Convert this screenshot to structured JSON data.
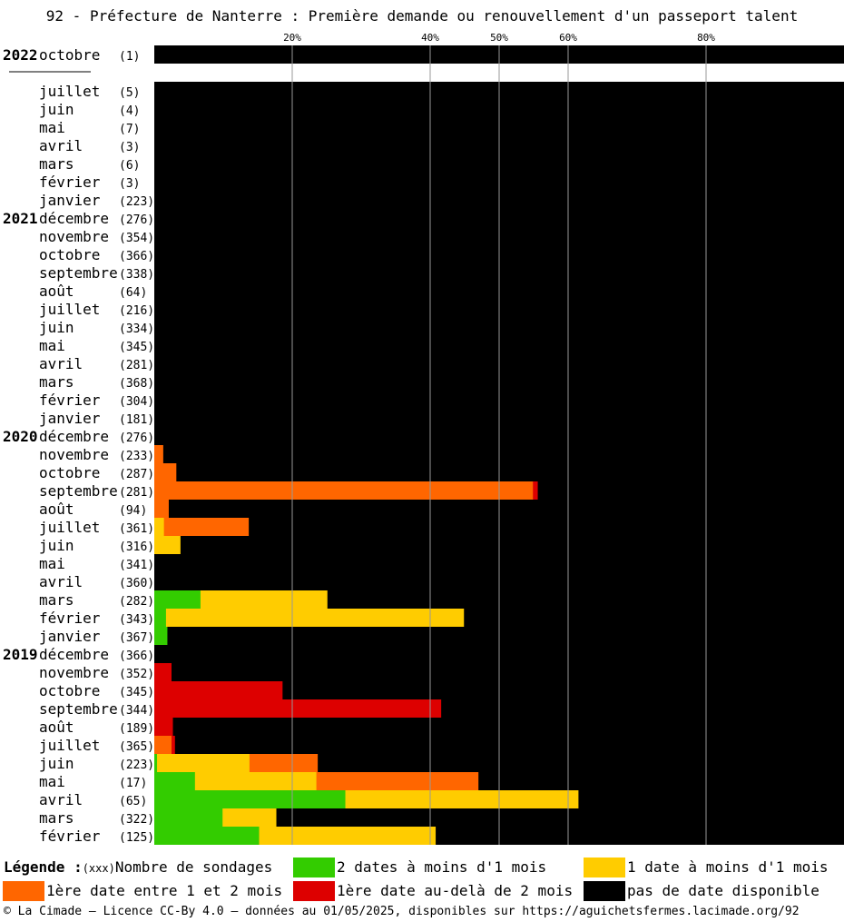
{
  "title": "92 - Préfecture de Nanterre : Première demande ou renouvellement d'un passeport talent",
  "legend": {
    "heading": "Légende :",
    "count_note": "(xxx)",
    "count_label": "Nombre de sondages",
    "items": [
      {
        "label": "2 dates à moins d'1 mois",
        "color": "#33cc00"
      },
      {
        "label": "1 date à moins d'1 mois",
        "color": "#ffcc00"
      },
      {
        "label": "1ère date entre 1 et 2 mois",
        "color": "#ff6600"
      },
      {
        "label": "1ère date au-delà de 2 mois",
        "color": "#dd0000"
      },
      {
        "label": "pas de date disponible",
        "color": "#000000"
      }
    ]
  },
  "footer": "© La Cimade — Licence CC-By 4.0 — données au 01/05/2025, disponibles sur https://aguichetsfermes.lacimade.org/92",
  "chart_data": {
    "type": "bar",
    "orientation": "horizontal-stacked-percent",
    "x_ticks": [
      {
        "value": 20,
        "label": "20%"
      },
      {
        "value": 40,
        "label": "40%"
      },
      {
        "value": 50,
        "label": "50%"
      },
      {
        "value": 60,
        "label": "60%"
      },
      {
        "value": 80,
        "label": "80%"
      }
    ],
    "xlim": [
      0,
      100
    ],
    "series_order": [
      "vert",
      "jaune",
      "orange",
      "rouge",
      "noir"
    ],
    "rows": [
      {
        "year": "2022",
        "month": "octobre",
        "count": "(1)",
        "v": [
          0,
          0,
          0,
          0,
          100
        ]
      },
      {
        "gap": true
      },
      {
        "month": "juillet",
        "count": "(5)",
        "v": [
          0,
          0,
          0,
          0,
          100
        ]
      },
      {
        "month": "juin",
        "count": "(4)",
        "v": [
          0,
          0,
          0,
          0,
          100
        ]
      },
      {
        "month": "mai",
        "count": "(7)",
        "v": [
          0,
          0,
          0,
          0,
          100
        ]
      },
      {
        "month": "avril",
        "count": "(3)",
        "v": [
          0,
          0,
          0,
          0,
          100
        ]
      },
      {
        "month": "mars",
        "count": "(6)",
        "v": [
          0,
          0,
          0,
          0,
          100
        ]
      },
      {
        "month": "février",
        "count": "(3)",
        "v": [
          0,
          0,
          0,
          0,
          100
        ]
      },
      {
        "month": "janvier",
        "count": "(223)",
        "v": [
          0,
          0,
          0,
          0,
          100
        ]
      },
      {
        "year": "2021",
        "month": "décembre",
        "count": "(276)",
        "v": [
          0,
          0,
          0,
          0,
          100
        ]
      },
      {
        "month": "novembre",
        "count": "(354)",
        "v": [
          0,
          0,
          0,
          0,
          100
        ]
      },
      {
        "month": "octobre",
        "count": "(366)",
        "v": [
          0,
          0,
          0,
          0,
          100
        ]
      },
      {
        "month": "septembre",
        "count": "(338)",
        "v": [
          0,
          0,
          0,
          0,
          100
        ]
      },
      {
        "month": "août",
        "count": "(64)",
        "v": [
          0,
          0,
          0,
          0,
          100
        ]
      },
      {
        "month": "juillet",
        "count": "(216)",
        "v": [
          0,
          0,
          0,
          0,
          100
        ]
      },
      {
        "month": "juin",
        "count": "(334)",
        "v": [
          0,
          0,
          0,
          0,
          100
        ]
      },
      {
        "month": "mai",
        "count": "(345)",
        "v": [
          0,
          0,
          0,
          0,
          100
        ]
      },
      {
        "month": "avril",
        "count": "(281)",
        "v": [
          0,
          0,
          0,
          0,
          100
        ]
      },
      {
        "month": "mars",
        "count": "(368)",
        "v": [
          0,
          0,
          0,
          0,
          100
        ]
      },
      {
        "month": "février",
        "count": "(304)",
        "v": [
          0,
          0,
          0,
          0,
          100
        ]
      },
      {
        "month": "janvier",
        "count": "(181)",
        "v": [
          0,
          0,
          0,
          0,
          100
        ]
      },
      {
        "year": "2020",
        "month": "décembre",
        "count": "(276)",
        "v": [
          0,
          0,
          0,
          0,
          100
        ]
      },
      {
        "month": "novembre",
        "count": "(233)",
        "v": [
          0,
          0,
          1.3,
          0,
          98.7
        ]
      },
      {
        "month": "octobre",
        "count": "(287)",
        "v": [
          0,
          0,
          3.2,
          0,
          96.8
        ]
      },
      {
        "month": "septembre",
        "count": "(281)",
        "v": [
          0,
          0,
          54.9,
          0.7,
          44.4
        ]
      },
      {
        "month": "août",
        "count": "(94)",
        "v": [
          0,
          0,
          2.1,
          0,
          97.9
        ]
      },
      {
        "month": "juillet",
        "count": "(361)",
        "v": [
          0,
          1.4,
          12.3,
          0,
          86.3
        ]
      },
      {
        "month": "juin",
        "count": "(316)",
        "v": [
          0,
          3.8,
          0,
          0,
          96.2
        ]
      },
      {
        "month": "mai",
        "count": "(341)",
        "v": [
          0,
          0,
          0,
          0,
          100
        ]
      },
      {
        "month": "avril",
        "count": "(360)",
        "v": [
          0,
          0,
          0,
          0,
          100
        ]
      },
      {
        "month": "mars",
        "count": "(282)",
        "v": [
          6.7,
          18.4,
          0,
          0,
          74.9
        ]
      },
      {
        "month": "février",
        "count": "(343)",
        "v": [
          1.7,
          43.2,
          0,
          0,
          55.1
        ]
      },
      {
        "month": "janvier",
        "count": "(367)",
        "v": [
          1.9,
          0,
          0,
          0,
          98.1
        ]
      },
      {
        "year": "2019",
        "month": "décembre",
        "count": "(366)",
        "v": [
          0,
          0,
          0,
          0,
          100
        ]
      },
      {
        "month": "novembre",
        "count": "(352)",
        "v": [
          0,
          0,
          0,
          2.5,
          97.5
        ]
      },
      {
        "month": "octobre",
        "count": "(345)",
        "v": [
          0,
          0,
          0,
          18.6,
          81.4
        ]
      },
      {
        "month": "septembre",
        "count": "(344)",
        "v": [
          0,
          0,
          0,
          41.6,
          58.4
        ]
      },
      {
        "month": "août",
        "count": "(189)",
        "v": [
          0,
          0,
          0,
          2.7,
          97.3
        ]
      },
      {
        "month": "juillet",
        "count": "(365)",
        "v": [
          0,
          0,
          2.5,
          0.5,
          97
        ]
      },
      {
        "month": "juin",
        "count": "(223)",
        "v": [
          0.4,
          13.4,
          9.9,
          0,
          76.3
        ]
      },
      {
        "month": "mai",
        "count": "(17)",
        "v": [
          5.9,
          17.6,
          23.5,
          0,
          53
        ]
      },
      {
        "month": "avril",
        "count": "(65)",
        "v": [
          27.7,
          33.8,
          0,
          0,
          38.5
        ]
      },
      {
        "month": "mars",
        "count": "(322)",
        "v": [
          9.9,
          7.8,
          0,
          0,
          82.3
        ]
      },
      {
        "month": "février",
        "count": "(125)",
        "v": [
          15.2,
          25.6,
          0,
          0,
          59.2
        ]
      }
    ]
  }
}
